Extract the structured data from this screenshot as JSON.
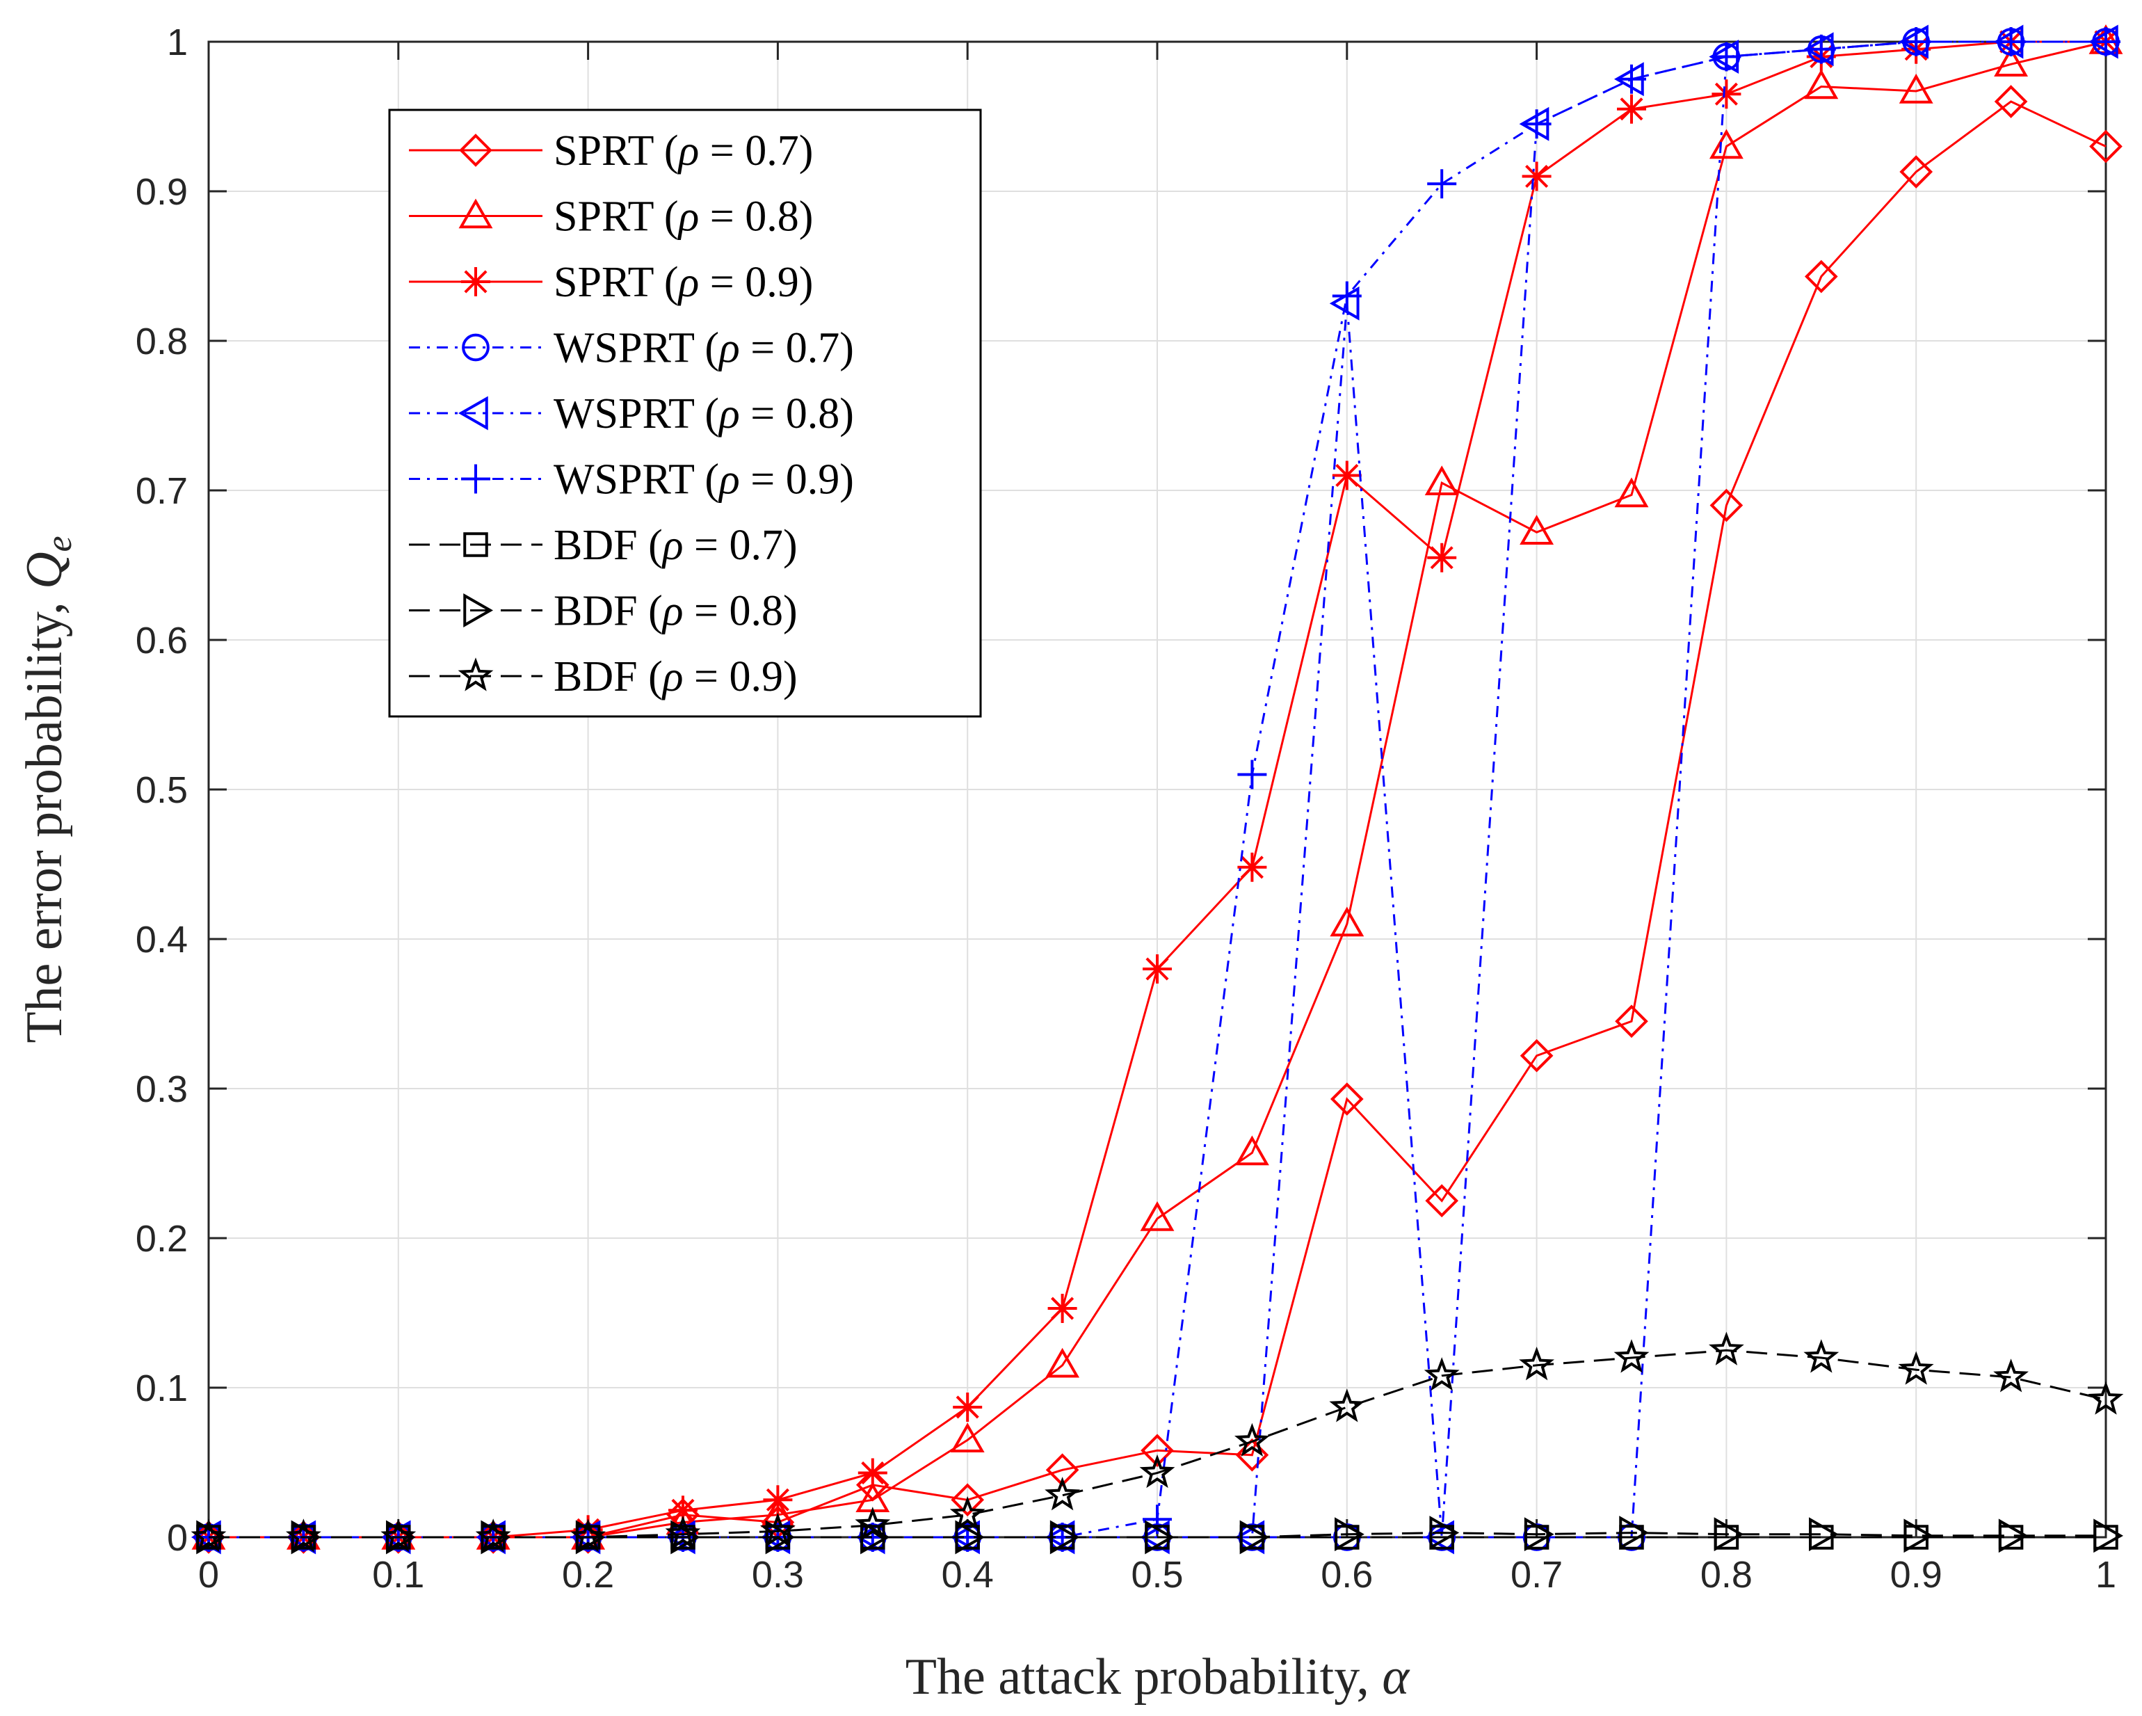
{
  "chart_data": {
    "type": "line",
    "title": "",
    "xlabel": "The attack probability, ",
    "xlabel_symbol": "α",
    "ylabel": "The error probability, ",
    "ylabel_symbol": "Q",
    "ylabel_subscript": "e",
    "xlim": [
      0,
      1
    ],
    "ylim": [
      0,
      1
    ],
    "grid": true,
    "legend_position": "top-left",
    "x_ticks": [
      "0",
      "0.1",
      "0.2",
      "0.3",
      "0.4",
      "0.5",
      "0.6",
      "0.7",
      "0.8",
      "0.9",
      "1"
    ],
    "y_ticks": [
      "0",
      "0.1",
      "0.2",
      "0.3",
      "0.4",
      "0.5",
      "0.6",
      "0.7",
      "0.8",
      "0.9",
      "1"
    ],
    "x": [
      0,
      0.05,
      0.1,
      0.15,
      0.2,
      0.25,
      0.3,
      0.35,
      0.4,
      0.45,
      0.5,
      0.55,
      0.6,
      0.65,
      0.7,
      0.75,
      0.8,
      0.85,
      0.9,
      0.95,
      1
    ],
    "series": [
      {
        "name": "SPRT",
        "rho": "0.7",
        "color": "#ff0000",
        "marker": "diamond",
        "linestyle": "solid",
        "values": [
          0,
          0,
          0,
          0,
          0,
          0.015,
          0.01,
          0.035,
          0.025,
          0.045,
          0.058,
          0.055,
          0.293,
          0.225,
          0.322,
          0.345,
          0.69,
          0.843,
          0.913,
          0.96,
          0.93
        ]
      },
      {
        "name": "SPRT",
        "rho": "0.8",
        "color": "#ff0000",
        "marker": "triangle-up",
        "linestyle": "solid",
        "values": [
          0,
          0,
          0,
          0,
          0,
          0.01,
          0.015,
          0.025,
          0.065,
          0.115,
          0.213,
          0.257,
          0.41,
          0.705,
          0.672,
          0.697,
          0.93,
          0.97,
          0.967,
          0.985,
          1
        ]
      },
      {
        "name": "SPRT",
        "rho": "0.9",
        "color": "#ff0000",
        "marker": "asterisk",
        "linestyle": "solid",
        "values": [
          0,
          0,
          0,
          0,
          0.005,
          0.018,
          0.025,
          0.043,
          0.087,
          0.153,
          0.38,
          0.448,
          0.71,
          0.655,
          0.91,
          0.955,
          0.965,
          0.99,
          0.995,
          1,
          1
        ]
      },
      {
        "name": "WSPRT",
        "rho": "0.7",
        "color": "#0000ff",
        "marker": "circle",
        "linestyle": "dashdot",
        "values": [
          0,
          0,
          0,
          0,
          0,
          0,
          0,
          0,
          0,
          0,
          0,
          0,
          0,
          0,
          0,
          0,
          0.99,
          0.995,
          1,
          1,
          1
        ]
      },
      {
        "name": "WSPRT",
        "rho": "0.8",
        "color": "#0000ff",
        "marker": "triangle-left",
        "linestyle": "dashdot",
        "values": [
          0,
          0,
          0,
          0,
          0,
          0,
          0,
          0,
          0,
          0,
          0,
          0,
          0.825,
          0,
          0.945,
          0.975,
          0.99,
          0.995,
          1,
          1,
          1
        ]
      },
      {
        "name": "WSPRT",
        "rho": "0.9",
        "color": "#0000ff",
        "marker": "plus",
        "linestyle": "dashdot",
        "values": [
          0,
          0,
          0,
          0,
          0,
          0,
          0,
          0,
          0,
          0,
          0.012,
          0.51,
          0.83,
          0.905,
          0.945,
          0.975,
          0.99,
          0.995,
          1,
          1,
          1
        ]
      },
      {
        "name": "BDF",
        "rho": "0.7",
        "color": "#000000",
        "marker": "square",
        "linestyle": "dashed",
        "values": [
          0,
          0,
          0,
          0,
          0,
          0,
          0,
          0,
          0,
          0,
          0,
          0,
          0,
          0,
          0,
          0,
          0,
          0,
          0,
          0,
          0
        ]
      },
      {
        "name": "BDF",
        "rho": "0.8",
        "color": "#000000",
        "marker": "triangle-right",
        "linestyle": "dashed",
        "values": [
          0,
          0,
          0,
          0,
          0,
          0,
          0,
          0,
          0,
          0,
          0,
          0,
          0.002,
          0.003,
          0.002,
          0.003,
          0.002,
          0.002,
          0.001,
          0.001,
          0.001
        ]
      },
      {
        "name": "BDF",
        "rho": "0.9",
        "color": "#000000",
        "marker": "pentagram",
        "linestyle": "dashed",
        "values": [
          0,
          0,
          0,
          0,
          0,
          0.002,
          0.004,
          0.008,
          0.015,
          0.028,
          0.043,
          0.064,
          0.087,
          0.108,
          0.115,
          0.12,
          0.125,
          0.12,
          0.112,
          0.107,
          0.092
        ]
      }
    ]
  }
}
